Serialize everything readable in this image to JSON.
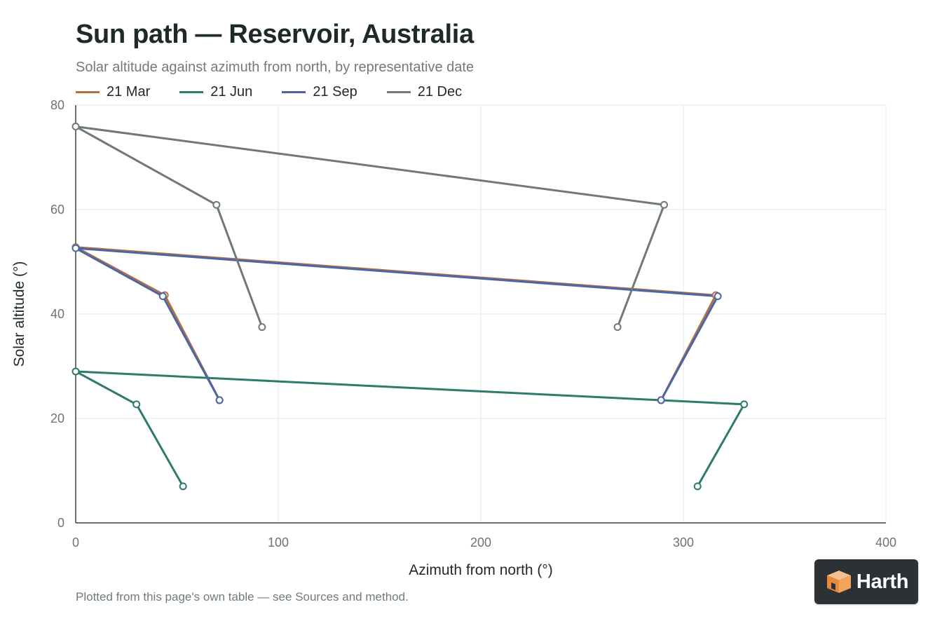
{
  "chart_data": {
    "type": "line",
    "title": "Sun path — Reservoir, Australia",
    "subtitle": "Solar altitude against azimuth from north, by representative date",
    "xlabel": "Azimuth from north (°)",
    "ylabel": "Solar altitude (°)",
    "xlim": [
      0,
      400
    ],
    "ylim": [
      0,
      80
    ],
    "xticks": [
      0,
      100,
      200,
      300,
      400
    ],
    "yticks": [
      0,
      20,
      40,
      60,
      80
    ],
    "grid": true,
    "legend_position": "top-left",
    "series": [
      {
        "name": "21 Mar",
        "color": "#b5703f",
        "points": [
          [
            71,
            23.5
          ],
          [
            44,
            43.6
          ],
          [
            0,
            52.8
          ],
          [
            316,
            43.6
          ],
          [
            289,
            23.5
          ]
        ]
      },
      {
        "name": "21 Jun",
        "color": "#2e7a6d",
        "points": [
          [
            53,
            7
          ],
          [
            30,
            22.7
          ],
          [
            0,
            29
          ],
          [
            330,
            22.7
          ],
          [
            307,
            7
          ]
        ]
      },
      {
        "name": "21 Sep",
        "color": "#4a66a8",
        "points": [
          [
            71,
            23.5
          ],
          [
            43,
            43.4
          ],
          [
            0,
            52.6
          ],
          [
            317,
            43.4
          ],
          [
            289,
            23.5
          ]
        ]
      },
      {
        "name": "21 Dec",
        "color": "#6f7a74",
        "points": [
          [
            92,
            37.5
          ],
          [
            69.5,
            60.9
          ],
          [
            0,
            75.9
          ],
          [
            290.5,
            60.9
          ],
          [
            267.5,
            37.5
          ]
        ]
      }
    ]
  },
  "footnote": "Plotted from this page's own table — see Sources and method.",
  "badge": {
    "label": "Harth"
  }
}
